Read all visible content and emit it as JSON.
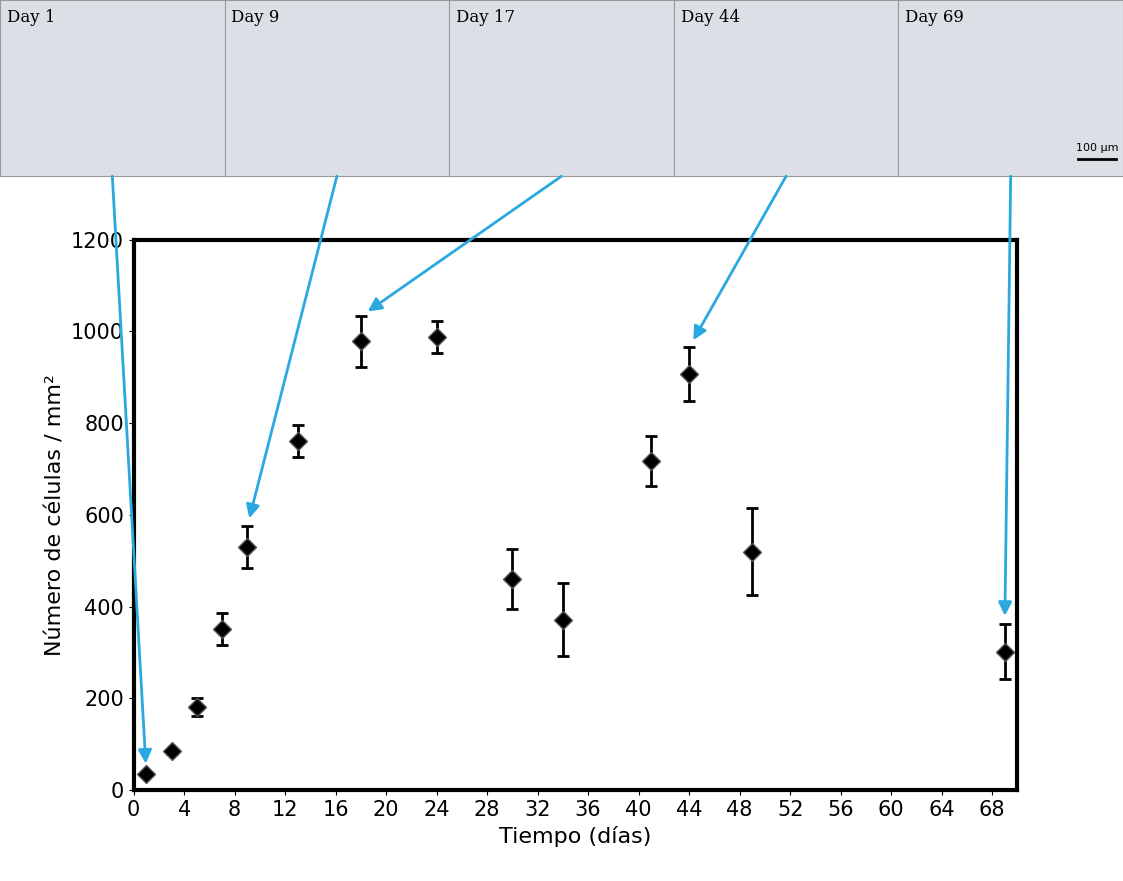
{
  "chart_data": {
    "type": "scatter",
    "x_label": "Tiempo (días)",
    "y_label": "Número de células / mm²",
    "x": [
      1,
      3,
      5,
      7,
      9,
      13,
      18,
      24,
      30,
      34,
      41,
      44,
      49,
      69
    ],
    "values": [
      35,
      85,
      182,
      352,
      530,
      762,
      978,
      987,
      460,
      372,
      717,
      907,
      520,
      302
    ],
    "error": [
      5,
      5,
      20,
      35,
      45,
      35,
      55,
      35,
      65,
      80,
      55,
      58,
      95,
      60
    ],
    "color": "#000000",
    "marker": "diamond",
    "xlim": [
      0,
      70
    ],
    "xticks": [
      0,
      4,
      8,
      12,
      16,
      20,
      24,
      28,
      32,
      36,
      40,
      44,
      48,
      52,
      56,
      60,
      64,
      68
    ],
    "ylim": [
      0,
      1200
    ],
    "yticks": [
      0,
      200,
      400,
      600,
      800,
      1000,
      1200
    ]
  },
  "images": {
    "panels": [
      {
        "label": "Day 1"
      },
      {
        "label": "Day 9"
      },
      {
        "label": "Day 17"
      },
      {
        "label": "Day 44"
      },
      {
        "label": "Day 69"
      }
    ],
    "scale_bar": "100 µm"
  }
}
